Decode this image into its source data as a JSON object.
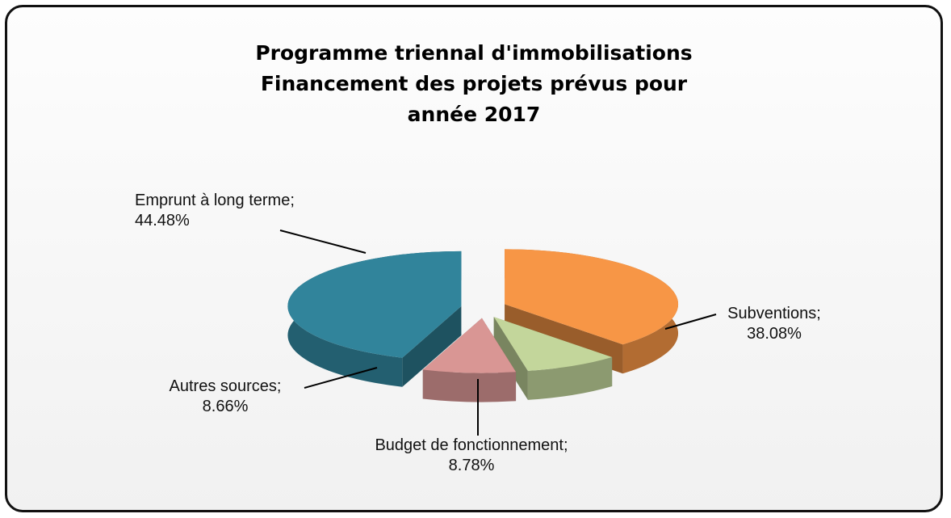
{
  "chart_data": {
    "type": "pie",
    "title": "Programme triennal d'immobilisations\nFinancement des projets prévus pour\nannée 2017",
    "categories": [
      "Subventions",
      "Budget de fonctionnement",
      "Autres sources",
      "Emprunt à long terme"
    ],
    "values": [
      38.08,
      8.78,
      8.66,
      44.48
    ],
    "value_labels": [
      "38.08%",
      "8.78%",
      "8.66%",
      "44.48%"
    ],
    "label_separator": ";",
    "colors": [
      "#f79646",
      "#c3d69b",
      "#d99694",
      "#31849b"
    ]
  }
}
